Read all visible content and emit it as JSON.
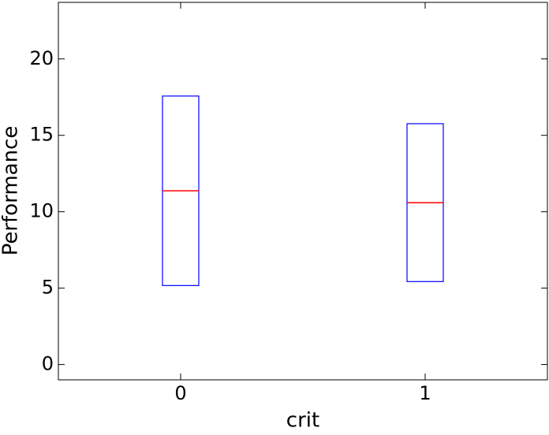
{
  "chart_data": {
    "type": "box",
    "x_label": "crit",
    "y_label": "Performance",
    "categories": [
      "0",
      "1"
    ],
    "q1": [
      5.17,
      5.43
    ],
    "median": [
      11.37,
      10.59
    ],
    "q3": [
      17.57,
      15.76
    ],
    "box_color": "#0000ff",
    "median_color": "#ff0000",
    "ylim": [
      -1,
      23.7
    ],
    "yticks": [
      0,
      5,
      10,
      15,
      20
    ],
    "grid": false
  }
}
